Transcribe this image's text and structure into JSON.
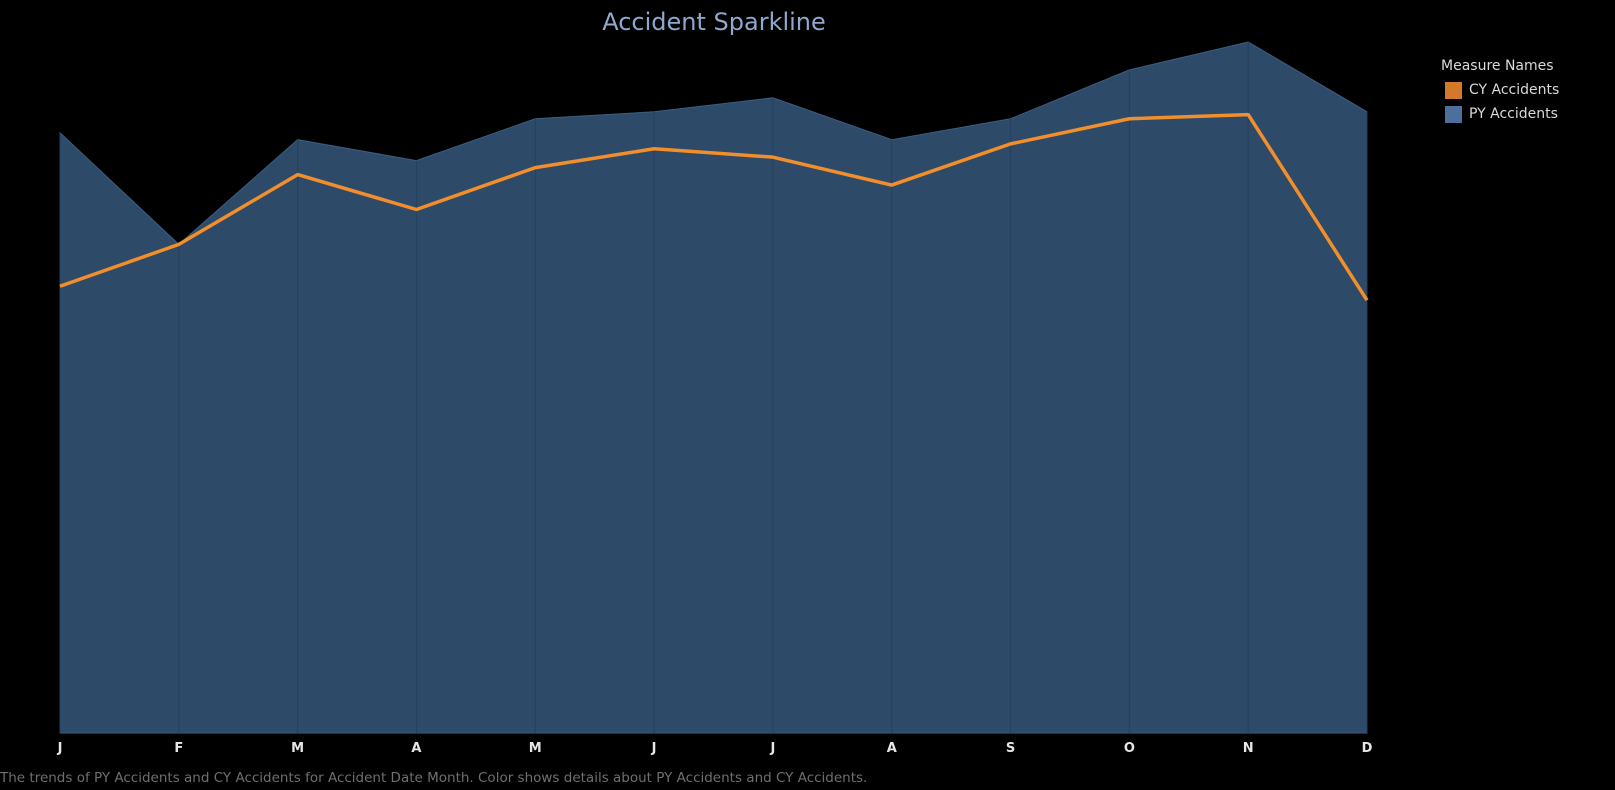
{
  "chart_data": {
    "type": "area",
    "title": "Accident Sparkline",
    "xlabel": "",
    "ylabel": "",
    "categories": [
      "J",
      "F",
      "M",
      "A",
      "M",
      "J",
      "J",
      "A",
      "S",
      "O",
      "N",
      "D"
    ],
    "ylim": [
      0,
      100
    ],
    "grid": false,
    "legend_placement": "top-right",
    "legend_title": "Measure Names",
    "series": [
      {
        "name": "PY Accidents",
        "mark": "area",
        "color": "#4e79a7",
        "fill": "#2d4a69",
        "values": [
          86,
          70,
          85,
          82,
          88,
          89,
          91,
          85,
          88,
          95,
          99,
          89
        ]
      },
      {
        "name": "CY Accidents",
        "mark": "line",
        "color": "#f28e2b",
        "legend_color": "#d37a2a",
        "values": [
          64,
          70,
          80,
          75,
          81,
          83.7,
          82.5,
          78.5,
          84.4,
          88,
          88.6,
          62
        ]
      }
    ]
  },
  "legend_swatches": [
    {
      "label": "CY Accidents",
      "color": "#d37a2a"
    },
    {
      "label": "PY Accidents",
      "color": "#4e6f99"
    }
  ],
  "caption": "The trends of PY Accidents and CY Accidents for Accident Date Month.  Color shows details about PY Accidents and CY Accidents."
}
